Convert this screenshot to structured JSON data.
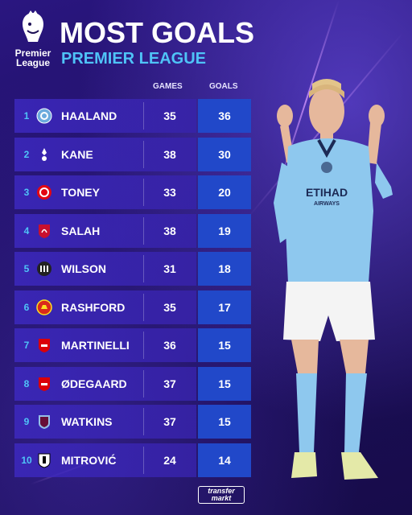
{
  "header": {
    "brand_line1": "Premier",
    "brand_line2": "League",
    "title": "MOST GOALS",
    "subtitle": "PREMIER LEAGUE"
  },
  "columns": {
    "games": "GAMES",
    "goals": "GOALS"
  },
  "rows": [
    {
      "rank": "1",
      "name": "HAALAND",
      "games": "35",
      "goals": "36",
      "crest": "man-city-crest"
    },
    {
      "rank": "2",
      "name": "KANE",
      "games": "38",
      "goals": "30",
      "crest": "tottenham-crest"
    },
    {
      "rank": "3",
      "name": "TONEY",
      "games": "33",
      "goals": "20",
      "crest": "brentford-crest"
    },
    {
      "rank": "4",
      "name": "SALAH",
      "games": "38",
      "goals": "19",
      "crest": "liverpool-crest"
    },
    {
      "rank": "5",
      "name": "WILSON",
      "games": "31",
      "goals": "18",
      "crest": "newcastle-crest"
    },
    {
      "rank": "6",
      "name": "RASHFORD",
      "games": "35",
      "goals": "17",
      "crest": "man-united-crest"
    },
    {
      "rank": "7",
      "name": "MARTINELLI",
      "games": "36",
      "goals": "15",
      "crest": "arsenal-crest"
    },
    {
      "rank": "8",
      "name": "ØDEGAARD",
      "games": "37",
      "goals": "15",
      "crest": "arsenal-crest"
    },
    {
      "rank": "9",
      "name": "WATKINS",
      "games": "37",
      "goals": "15",
      "crest": "aston-villa-crest"
    },
    {
      "rank": "10",
      "name": "MITROVIĆ",
      "games": "24",
      "goals": "14",
      "crest": "fulham-crest"
    }
  ],
  "player_shirt": {
    "sponsor_line1": "ETIHAD",
    "sponsor_line2": "AIRWAYS"
  },
  "footer": {
    "logo_line1": "transfer",
    "logo_line2": "markt"
  },
  "colors": {
    "background": "#1c0f55",
    "accent": "#4fc3f7",
    "goals_cell": "#2148c9",
    "row": "#3c28be",
    "shirt": "#8ec8ee"
  }
}
